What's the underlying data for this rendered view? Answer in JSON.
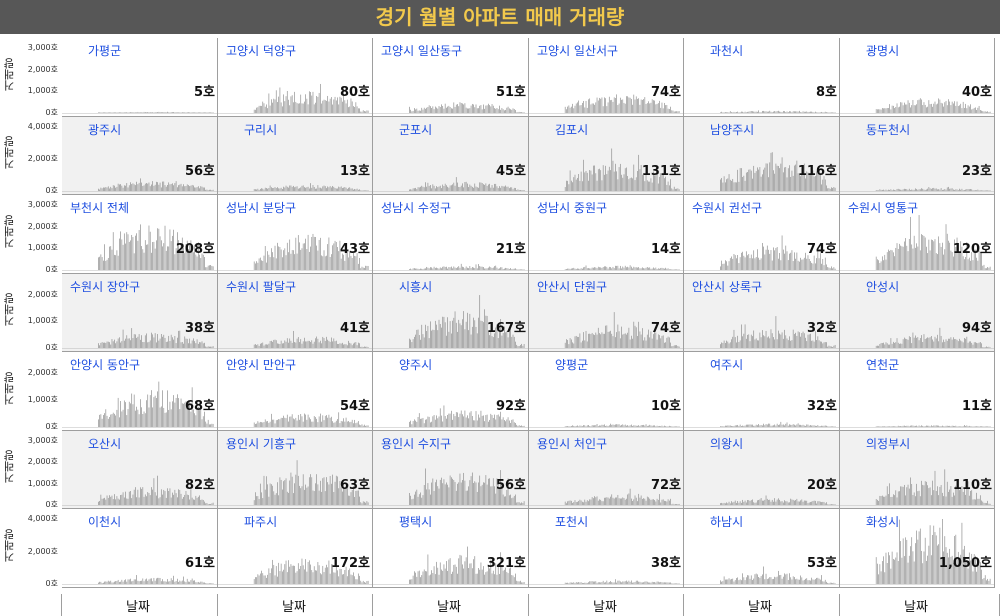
{
  "title": "경기 월별 아파트 매매 거래량",
  "x_axis_label": "날짜",
  "y_axis_label": "거래량",
  "colors": {
    "title_bg": "#575757",
    "title_text": "#f2c94c",
    "bar": "#8c8c8c",
    "panel_name": "#1f4fe0"
  },
  "chart_data": {
    "type": "bar",
    "facet_grid": "7 rows x 6 columns, y-axis shared per row",
    "rows": [
      {
        "y_ticks": [
          "3,000호",
          "2,000호",
          "1,000호",
          "0호"
        ],
        "ylim": [
          0,
          3000
        ]
      },
      {
        "y_ticks": [
          "4,000호",
          "2,000호",
          "0호"
        ],
        "ylim": [
          0,
          4000
        ]
      },
      {
        "y_ticks": [
          "3,000호",
          "2,000호",
          "1,000호",
          "0호"
        ],
        "ylim": [
          0,
          3000
        ]
      },
      {
        "y_ticks": [
          "2,000호",
          "1,000호",
          "0호"
        ],
        "ylim": [
          0,
          2400
        ]
      },
      {
        "y_ticks": [
          "2,000호",
          "1,000호",
          "0호"
        ],
        "ylim": [
          0,
          2400
        ]
      },
      {
        "y_ticks": [
          "3,000호",
          "2,000호",
          "1,000호",
          "0호"
        ],
        "ylim": [
          0,
          3000
        ]
      },
      {
        "y_ticks": [
          "4,000호",
          "2,000호",
          "0호"
        ],
        "ylim": [
          0,
          4000
        ]
      }
    ],
    "panels": [
      {
        "name": "가평군",
        "last": "5호",
        "level": 40
      },
      {
        "name": "고양시 덕양구",
        "last": "80호",
        "level": 800
      },
      {
        "name": "고양시 일산동구",
        "last": "51호",
        "level": 400
      },
      {
        "name": "고양시 일산서구",
        "last": "74호",
        "level": 700
      },
      {
        "name": "과천시",
        "last": "8호",
        "level": 80
      },
      {
        "name": "광명시",
        "last": "40호",
        "level": 550
      },
      {
        "name": "광주시",
        "last": "56호",
        "level": 500
      },
      {
        "name": "구리시",
        "last": "13호",
        "level": 300
      },
      {
        "name": "군포시",
        "last": "45호",
        "level": 450
      },
      {
        "name": "김포시",
        "last": "131호",
        "level": 1500
      },
      {
        "name": "남양주시",
        "last": "116호",
        "level": 1700
      },
      {
        "name": "동두천시",
        "last": "23호",
        "level": 150
      },
      {
        "name": "부천시 전체",
        "last": "208호",
        "level": 1700
      },
      {
        "name": "성남시 분당구",
        "last": "43호",
        "level": 1300
      },
      {
        "name": "성남시 수정구",
        "last": "21호",
        "level": 150
      },
      {
        "name": "성남시 중원구",
        "last": "14호",
        "level": 150
      },
      {
        "name": "수원시 권선구",
        "last": "74호",
        "level": 900
      },
      {
        "name": "수원시 영통구",
        "last": "120호",
        "level": 1400
      },
      {
        "name": "수원시 장안구",
        "last": "38호",
        "level": 450
      },
      {
        "name": "수원시 팔달구",
        "last": "41호",
        "level": 350
      },
      {
        "name": "시흥시",
        "last": "167호",
        "level": 1100
      },
      {
        "name": "안산시 단원구",
        "last": "74호",
        "level": 700
      },
      {
        "name": "안산시 상록구",
        "last": "32호",
        "level": 600
      },
      {
        "name": "안성시",
        "last": "94호",
        "level": 400
      },
      {
        "name": "안양시 동안구",
        "last": "68호",
        "level": 1100
      },
      {
        "name": "안양시 만안구",
        "last": "54호",
        "level": 400
      },
      {
        "name": "양주시",
        "last": "92호",
        "level": 500
      },
      {
        "name": "양평군",
        "last": "10호",
        "level": 80
      },
      {
        "name": "여주시",
        "last": "32호",
        "level": 100
      },
      {
        "name": "연천군",
        "last": "11호",
        "level": 50
      },
      {
        "name": "오산시",
        "last": "82호",
        "level": 700
      },
      {
        "name": "용인시 기흥구",
        "last": "63호",
        "level": 1300
      },
      {
        "name": "용인시 수지구",
        "last": "56호",
        "level": 1300
      },
      {
        "name": "용인시 처인구",
        "last": "72호",
        "level": 400
      },
      {
        "name": "의왕시",
        "last": "20호",
        "level": 250
      },
      {
        "name": "의정부시",
        "last": "110호",
        "level": 900
      },
      {
        "name": "이천시",
        "last": "61호",
        "level": 300
      },
      {
        "name": "파주시",
        "last": "172호",
        "level": 1300
      },
      {
        "name": "평택시",
        "last": "321호",
        "level": 1400
      },
      {
        "name": "포천시",
        "last": "38호",
        "level": 180
      },
      {
        "name": "하남시",
        "last": "53호",
        "level": 550
      },
      {
        "name": "화성시",
        "last": "1,050호",
        "level": 2800
      }
    ]
  }
}
